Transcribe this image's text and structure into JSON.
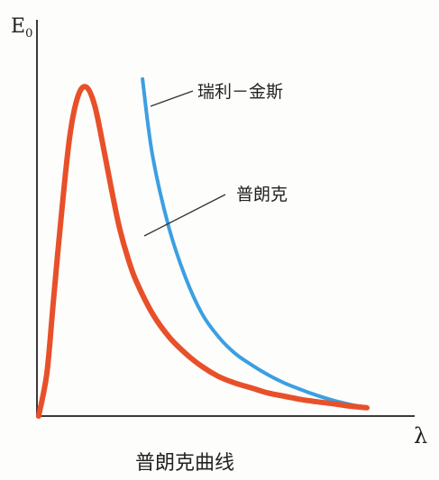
{
  "chart_data": {
    "type": "line",
    "title": "普朗克曲线",
    "ylabel": "E",
    "ylabel_sub": "0",
    "xlabel": "λ",
    "grid": false,
    "series": [
      {
        "name": "普朗克",
        "color": "#e8502a",
        "x": [
          0.1,
          0.6,
          1.0,
          1.5,
          2.0,
          2.5,
          3.0,
          3.5,
          4.0,
          4.5,
          5.0,
          5.5,
          6.0,
          7.0,
          8.0,
          9.0,
          10.0,
          11.0,
          12.0,
          13.0,
          14.0,
          15.0,
          16.0,
          17.0,
          18.0,
          19.0,
          20.0
        ],
        "y": [
          0,
          0.13,
          0.35,
          0.62,
          0.85,
          0.97,
          0.995,
          0.94,
          0.82,
          0.69,
          0.57,
          0.48,
          0.41,
          0.31,
          0.24,
          0.19,
          0.15,
          0.12,
          0.1,
          0.085,
          0.07,
          0.06,
          0.05,
          0.043,
          0.037,
          0.03,
          0.025
        ]
      },
      {
        "name": "瑞利－金斯",
        "color": "#3b9fe2",
        "x": [
          6.4,
          7.0,
          8.0,
          9.0,
          10.0,
          11.0,
          12.0,
          13.0,
          14.0,
          15.0,
          16.0,
          17.0,
          18.0,
          19.0,
          20.0
        ],
        "y": [
          1.02,
          0.79,
          0.57,
          0.42,
          0.31,
          0.24,
          0.19,
          0.155,
          0.125,
          0.1,
          0.08,
          0.062,
          0.047,
          0.035,
          0.025
        ]
      }
    ]
  }
}
